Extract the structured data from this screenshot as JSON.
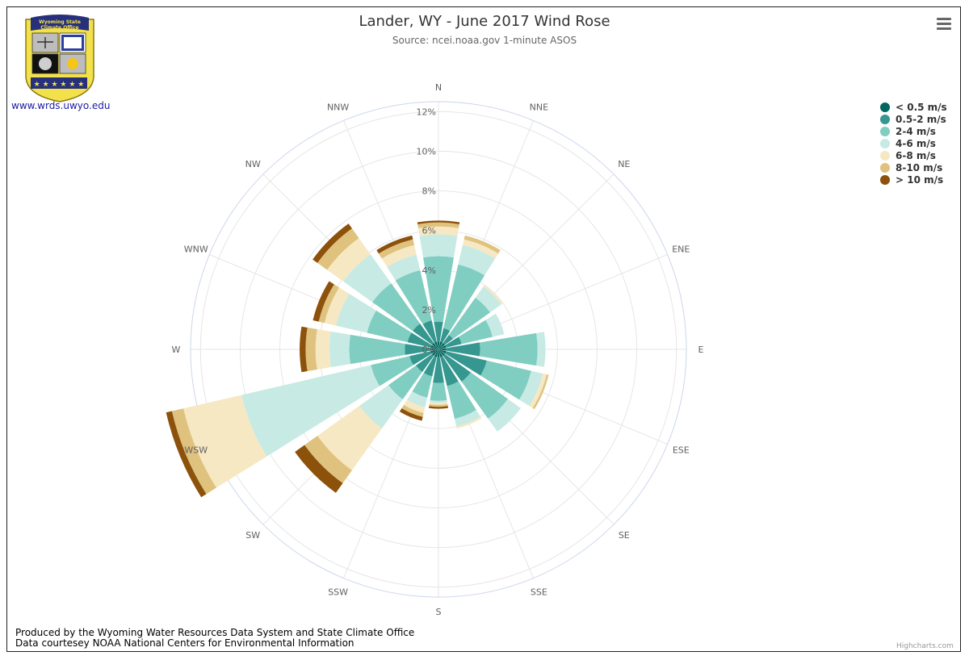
{
  "website": "www.wrds.uwyo.edu",
  "logo": {
    "line1": "Wyoming State",
    "line2": "Climate Office"
  },
  "footer": {
    "line1": "Produced by the Wyoming Water Resources Data System and State Climate Office",
    "line2": "Data courtesey NOAA National Centers for Environmental Information"
  },
  "credits": "Highcharts.com",
  "colors": {
    "grid": "#e6e6e6",
    "outer_ring": "#ccd6eb",
    "logo_shield": "#f2e14b",
    "logo_banner": "#27307a"
  },
  "chart_data": {
    "type": "bar",
    "subtype": "wind-rose (stacked polar columns)",
    "title": "Lander, WY - June 2017 Wind Rose",
    "subtitle": "Source: ncei.noaa.gov 1-minute ASOS",
    "categories": [
      "N",
      "NNE",
      "NE",
      "ENE",
      "E",
      "ESE",
      "SE",
      "SSE",
      "S",
      "SSW",
      "SW",
      "WSW",
      "W",
      "WNW",
      "NW",
      "NNW"
    ],
    "radial_axis": {
      "min": 0,
      "max": 12.5,
      "ticks": [
        0,
        2,
        4,
        6,
        8,
        10,
        12
      ],
      "tick_labels": [
        "0%",
        "2%",
        "4%",
        "6%",
        "8%",
        "10%",
        "12%"
      ]
    },
    "legend_position": "top-right",
    "grid": true,
    "series": [
      {
        "name": "< 0.5 m/s",
        "color": "#01665e",
        "values": [
          0.4,
          0.4,
          0.4,
          0.4,
          0.4,
          0.4,
          0.4,
          0.4,
          0.4,
          0.4,
          0.4,
          0.4,
          0.4,
          0.4,
          0.4,
          0.4
        ]
      },
      {
        "name": "0.5-2 m/s",
        "color": "#35978f",
        "values": [
          1.0,
          0.7,
          0.5,
          0.8,
          1.7,
          2.1,
          1.6,
          1.5,
          1.3,
          1.0,
          1.0,
          1.1,
          1.3,
          1.2,
          1.2,
          1.1
        ]
      },
      {
        "name": "2-4 m/s",
        "color": "#80cdc1",
        "values": [
          3.3,
          3.3,
          2.3,
          1.6,
          2.9,
          2.3,
          2.3,
          1.7,
          0.9,
          1.1,
          1.7,
          2.0,
          2.8,
          2.1,
          2.5,
          2.6
        ]
      },
      {
        "name": "4-6 m/s",
        "color": "#c7eae5",
        "values": [
          1.1,
          1.0,
          0.7,
          0.6,
          0.4,
          0.6,
          0.8,
          0.4,
          0.1,
          0.5,
          1.8,
          6.7,
          1.0,
          1.6,
          1.8,
          0.8
        ]
      },
      {
        "name": "6-8 m/s",
        "color": "#f6e8c3",
        "values": [
          0.4,
          0.3,
          0.1,
          0.0,
          0.0,
          0.2,
          0.0,
          0.1,
          0.1,
          0.3,
          2.6,
          3.0,
          0.7,
          0.6,
          1.0,
          0.5
        ]
      },
      {
        "name": "8-10 m/s",
        "color": "#dfc27d",
        "values": [
          0.2,
          0.2,
          0.0,
          0.0,
          0.0,
          0.1,
          0.0,
          0.0,
          0.1,
          0.2,
          0.8,
          0.6,
          0.5,
          0.3,
          0.6,
          0.3
        ]
      },
      {
        "name": "> 10 m/s",
        "color": "#8c510a",
        "values": [
          0.1,
          0.0,
          0.0,
          0.0,
          0.0,
          0.0,
          0.0,
          0.0,
          0.1,
          0.2,
          0.6,
          0.3,
          0.3,
          0.3,
          0.3,
          0.2
        ]
      }
    ]
  }
}
